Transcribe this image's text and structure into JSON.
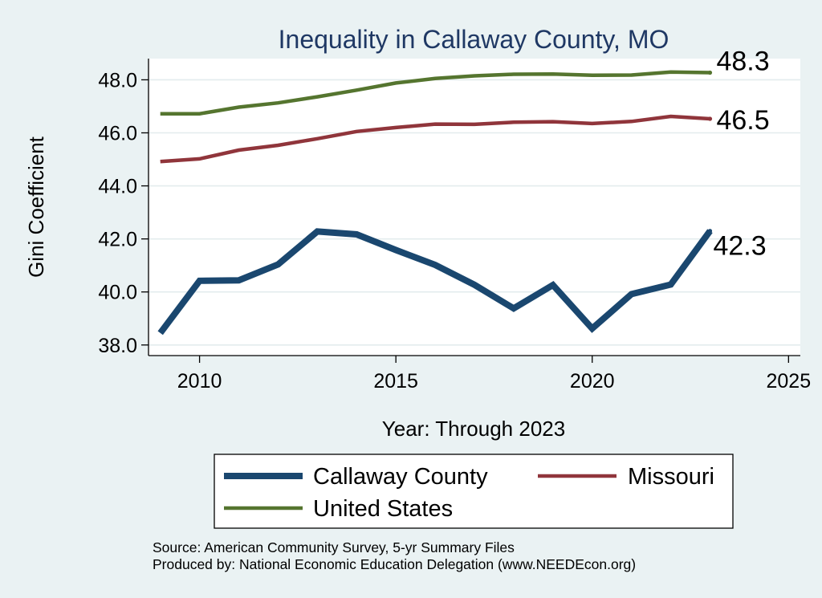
{
  "chart_data": {
    "type": "line",
    "title": "Inequality in Callaway County, MO",
    "xlabel": "Year: Through 2023",
    "ylabel": "Gini Coefficient",
    "xlim": [
      2008.7,
      2025.3
    ],
    "ylim": [
      37.6,
      48.8
    ],
    "xticks": [
      2010,
      2015,
      2020,
      2025
    ],
    "xtick_labels": [
      "2010",
      "2015",
      "2020",
      "2025"
    ],
    "yticks": [
      38,
      40,
      42,
      44,
      46,
      48
    ],
    "ytick_labels": [
      "38.0",
      "40.0",
      "42.0",
      "44.0",
      "46.0",
      "48.0"
    ],
    "grid": true,
    "x": [
      2009,
      2010,
      2011,
      2012,
      2013,
      2014,
      2015,
      2016,
      2017,
      2018,
      2019,
      2020,
      2021,
      2022,
      2023
    ],
    "series": [
      {
        "name": "Callaway County",
        "color": "#1a476f",
        "values": [
          38.45,
          40.42,
          40.44,
          41.04,
          42.28,
          42.17,
          41.58,
          41.02,
          40.27,
          39.38,
          40.26,
          38.62,
          39.92,
          40.28,
          42.3
        ],
        "end_label": "42.3"
      },
      {
        "name": "Missouri",
        "color": "#90353b",
        "values": [
          44.92,
          45.02,
          45.35,
          45.53,
          45.78,
          46.05,
          46.2,
          46.33,
          46.32,
          46.4,
          46.42,
          46.35,
          46.43,
          46.62,
          46.53
        ],
        "end_label": "46.5"
      },
      {
        "name": "United States",
        "color": "#55752f",
        "values": [
          46.72,
          46.72,
          46.97,
          47.13,
          47.36,
          47.61,
          47.88,
          48.05,
          48.15,
          48.21,
          48.22,
          48.17,
          48.18,
          48.29,
          48.27
        ],
        "end_label": "48.3"
      }
    ],
    "legend": {
      "position": "bottom",
      "entries": [
        "Callaway County",
        "Missouri",
        "United States"
      ]
    }
  },
  "notes": {
    "source": "Source: American Community Survey, 5-yr Summary Files",
    "producer": "Produced by: National Economic Education Delegation (www.NEEDEcon.org)"
  }
}
